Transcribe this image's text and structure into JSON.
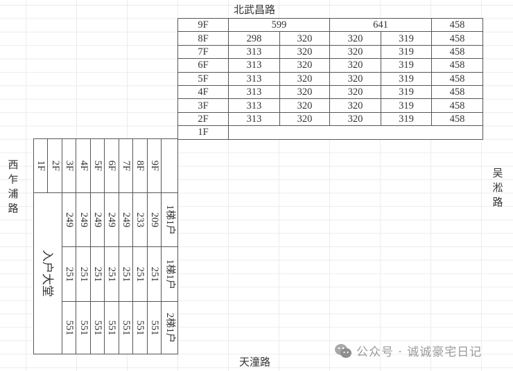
{
  "roads": {
    "north": "北武昌路",
    "west": "西乍浦路",
    "east": "吴淞路",
    "south": "天潼路"
  },
  "top_table": {
    "rows": [
      {
        "floor": "9F",
        "merged": [
          "599",
          "641",
          "458"
        ]
      },
      {
        "floor": "8F",
        "cells": [
          "298",
          "320",
          "320",
          "319",
          "458"
        ]
      },
      {
        "floor": "7F",
        "cells": [
          "313",
          "320",
          "320",
          "319",
          "458"
        ]
      },
      {
        "floor": "6F",
        "cells": [
          "313",
          "320",
          "320",
          "319",
          "458"
        ]
      },
      {
        "floor": "5F",
        "cells": [
          "313",
          "320",
          "320",
          "319",
          "458"
        ]
      },
      {
        "floor": "4F",
        "cells": [
          "313",
          "320",
          "320",
          "319",
          "458"
        ]
      },
      {
        "floor": "3F",
        "cells": [
          "313",
          "320",
          "320",
          "319",
          "458"
        ]
      },
      {
        "floor": "2F",
        "cells": [
          "313",
          "320",
          "320",
          "319",
          "458"
        ]
      },
      {
        "floor": "1F",
        "cells": []
      }
    ]
  },
  "side_table": {
    "headers": [
      "",
      "1梯1户",
      "1梯1户",
      "2梯1户"
    ],
    "rows": [
      {
        "floor": "9F",
        "cells": [
          "209",
          "251",
          "551"
        ]
      },
      {
        "floor": "8F",
        "cells": [
          "233",
          "251",
          "551"
        ]
      },
      {
        "floor": "7F",
        "cells": [
          "249",
          "251",
          "551"
        ]
      },
      {
        "floor": "6F",
        "cells": [
          "249",
          "251",
          "551"
        ]
      },
      {
        "floor": "5F",
        "cells": [
          "249",
          "251",
          "551"
        ]
      },
      {
        "floor": "4F",
        "cells": [
          "249",
          "251",
          "551"
        ]
      },
      {
        "floor": "3F",
        "cells": [
          "249",
          "251",
          "551"
        ]
      },
      {
        "floor": "2F",
        "cells": []
      },
      {
        "floor": "1F",
        "cells": []
      }
    ],
    "lobby": "入户大堂"
  },
  "watermark": {
    "icon": "wechat-icon",
    "text": "公众号 · 诚诚豪宅日记"
  }
}
